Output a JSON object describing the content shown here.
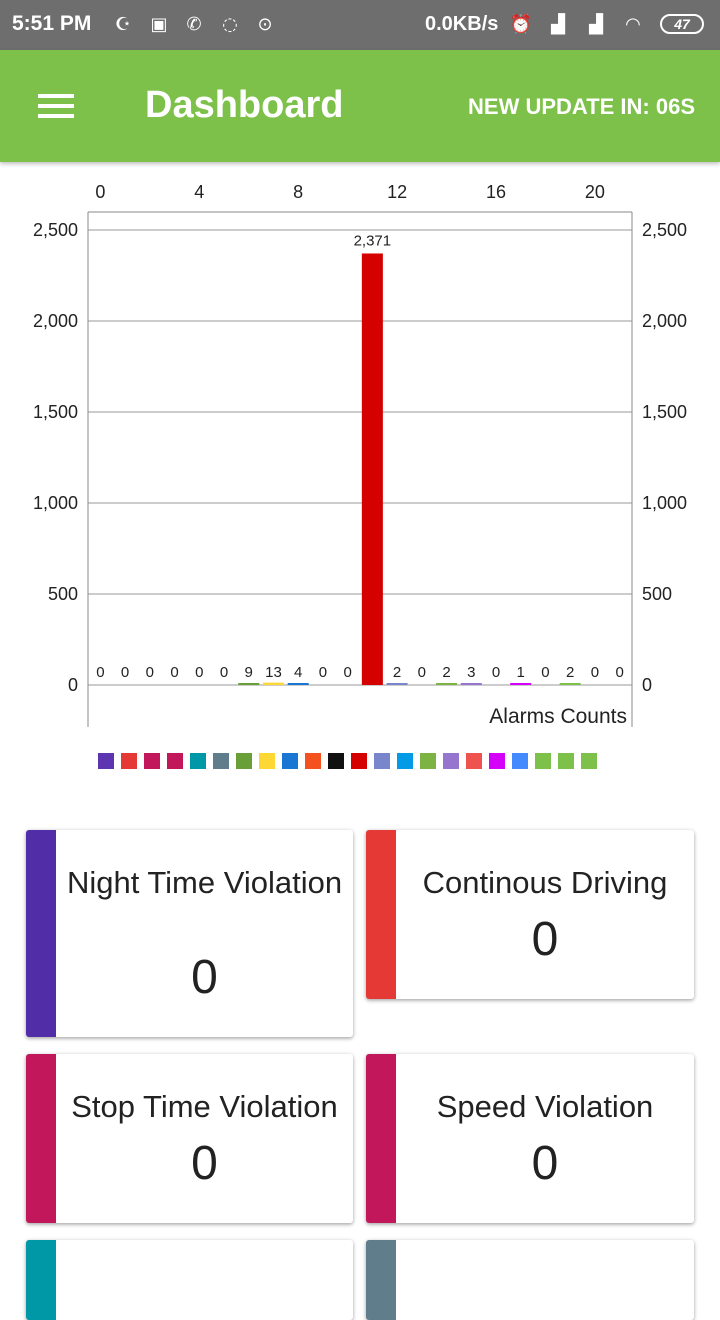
{
  "status_bar": {
    "time": "5:51 PM",
    "network_speed": "0.0KB/s",
    "battery": "47"
  },
  "app_bar": {
    "title": "Dashboard",
    "update_text": "NEW UPDATE IN: 06S"
  },
  "chart_data": {
    "type": "bar",
    "title": "",
    "xlabel": "Alarms Counts",
    "ylabel": "",
    "x_ticks": [
      "0",
      "4",
      "8",
      "12",
      "16",
      "20"
    ],
    "y_ticks": [
      "0",
      "500",
      "1,000",
      "1,500",
      "2,000",
      "2,500"
    ],
    "ylim": [
      0,
      2500
    ],
    "values": [
      0,
      0,
      0,
      0,
      0,
      0,
      9,
      13,
      4,
      0,
      0,
      2371,
      2,
      0,
      2,
      3,
      0,
      1,
      0,
      2,
      0,
      0
    ],
    "value_labels": [
      "0",
      "0",
      "0",
      "0",
      "0",
      "0",
      "9",
      "13",
      "4",
      "0",
      "0",
      "2,371",
      "2",
      "0",
      "2",
      "3",
      "0",
      "1",
      "0",
      "2",
      "0",
      "0"
    ],
    "colors": [
      "#5e35b1",
      "#e53935",
      "#c2185b",
      "#c2185b",
      "#0097a7",
      "#607d8b",
      "#689f38",
      "#fdd835",
      "#1976d2",
      "#f4511e",
      "#111111",
      "#d50000",
      "#7986cb",
      "#039be5",
      "#7cb342",
      "#9575cd",
      "#ef5350",
      "#d500f9",
      "#448aff",
      "#7dc14a",
      "#7dc14a",
      "#7dc14a"
    ],
    "grid": true,
    "legend": "bottom"
  },
  "cards": [
    {
      "title": "Night Time Violation",
      "value": "0",
      "color": "#512da8"
    },
    {
      "title": "Continous Driving",
      "value": "0",
      "color": "#e53935"
    },
    {
      "title": "Stop Time Violation",
      "value": "0",
      "color": "#c2185b"
    },
    {
      "title": "Speed Violation",
      "value": "0",
      "color": "#c2185b"
    },
    {
      "title": "",
      "value": "",
      "color": "#0097a7"
    },
    {
      "title": "",
      "value": "",
      "color": "#607d8b"
    }
  ]
}
